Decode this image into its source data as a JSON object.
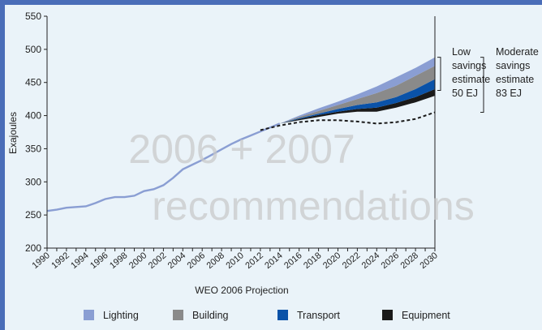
{
  "chart_data": {
    "type": "area",
    "xlabel": "WEO 2006 Projection",
    "ylabel": "Exajoules",
    "ylim": [
      200,
      550
    ],
    "xlim": [
      1990,
      2030
    ],
    "x_ticks": [
      "1990",
      "1992",
      "1994",
      "1996",
      "1998",
      "2000",
      "2002",
      "2004",
      "2006",
      "2008",
      "2010",
      "2012",
      "2014",
      "2016",
      "2018",
      "2020",
      "2022",
      "2024",
      "2026",
      "2028",
      "2030"
    ],
    "y_ticks": [
      "200",
      "250",
      "300",
      "350",
      "400",
      "450",
      "500",
      "550"
    ],
    "grid": false,
    "historical": {
      "name": "",
      "x": [
        1990,
        1991,
        1992,
        1993,
        1994,
        1995,
        1996,
        1997,
        1998,
        1999,
        2000,
        2001,
        2002,
        2003,
        2004,
        2005,
        2006,
        2007,
        2008,
        2009,
        2010,
        2011,
        2012,
        2013,
        2014
      ],
      "values": [
        256,
        258,
        261,
        262,
        263,
        268,
        274,
        277,
        277,
        279,
        286,
        289,
        295,
        306,
        319,
        326,
        333,
        341,
        349,
        357,
        364,
        370,
        376,
        382,
        388
      ]
    },
    "stack": {
      "x": [
        2014,
        2016,
        2018,
        2020,
        2022,
        2024,
        2026,
        2028,
        2030
      ],
      "series": [
        {
          "name": "Equipment",
          "color": "#1a1a1a",
          "lower": [
            388,
            393,
            398,
            403,
            406,
            406,
            412,
            420,
            430
          ],
          "upper": [
            388,
            395,
            401,
            406,
            410,
            412,
            419,
            428,
            440
          ]
        },
        {
          "name": "Transport",
          "color": "#0a52a8",
          "lower": [
            388,
            395,
            401,
            406,
            410,
            412,
            419,
            428,
            440
          ],
          "upper": [
            388,
            396,
            403,
            410,
            416,
            420,
            428,
            440,
            455
          ]
        },
        {
          "name": "Building",
          "color": "#8a8a8a",
          "lower": [
            388,
            396,
            403,
            410,
            416,
            420,
            428,
            440,
            455
          ],
          "upper": [
            388,
            398,
            407,
            416,
            425,
            434,
            445,
            460,
            475
          ]
        },
        {
          "name": "Lighting",
          "color": "#8a9ed3",
          "lower": [
            388,
            398,
            407,
            416,
            425,
            434,
            445,
            460,
            475
          ],
          "upper": [
            388,
            400,
            411,
            421,
            432,
            444,
            458,
            472,
            488
          ]
        }
      ]
    },
    "projection_line": {
      "name": "",
      "x": [
        2012,
        2014,
        2016,
        2018,
        2020,
        2022,
        2024,
        2026,
        2028,
        2030
      ],
      "values": [
        378,
        385,
        390,
        393,
        393,
        391,
        388,
        390,
        395,
        405
      ]
    },
    "annotations": [
      {
        "lines": [
          "Low",
          "savings",
          "estimate",
          "50 EJ"
        ],
        "from": 438,
        "to": 488
      },
      {
        "lines": [
          "Moderate",
          "savings",
          "estimate",
          "83 EJ"
        ],
        "from": 405,
        "to": 488
      }
    ],
    "legend": {
      "placement": "bottom",
      "items": [
        "Lighting",
        "Building",
        "Transport",
        "Equipment"
      ]
    }
  },
  "watermark": {
    "line1": "2006 + 2007",
    "line2": "recommendations"
  }
}
